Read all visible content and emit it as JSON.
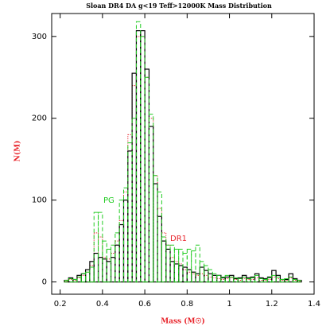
{
  "chart_data": {
    "type": "histogram",
    "title": "Sloan DR4 DA g<19 Teff>12000K Mass Distribution",
    "x_label": "Mass (M☉)",
    "y_label": "N(M)",
    "bins": [
      0.16,
      0.18,
      0.2,
      0.22,
      0.24,
      0.26,
      0.28,
      0.3,
      0.32,
      0.34,
      0.36,
      0.38,
      0.4,
      0.42,
      0.44,
      0.46,
      0.48,
      0.5,
      0.52,
      0.54,
      0.56,
      0.58,
      0.6,
      0.62,
      0.64,
      0.66,
      0.68,
      0.7,
      0.72,
      0.74,
      0.76,
      0.78,
      0.8,
      0.82,
      0.84,
      0.86,
      0.88,
      0.9,
      0.92,
      0.94,
      0.96,
      0.98,
      1.0,
      1.02,
      1.04,
      1.06,
      1.08,
      1.1,
      1.12,
      1.14,
      1.16,
      1.18,
      1.2,
      1.22,
      1.24,
      1.26,
      1.28,
      1.3,
      1.32,
      1.34,
      1.36,
      1.38,
      1.4
    ],
    "series": [
      {
        "name": "DR1",
        "color": "#e8232a",
        "dash": "dotted",
        "values": [
          0,
          0,
          0,
          1,
          3,
          2,
          5,
          8,
          12,
          20,
          60,
          55,
          30,
          28,
          35,
          50,
          75,
          110,
          180,
          240,
          300,
          300,
          250,
          200,
          130,
          90,
          60,
          45,
          30,
          25,
          22,
          15,
          12,
          10,
          8,
          10,
          8,
          6,
          5,
          4,
          3,
          4,
          5,
          3,
          2,
          4,
          3,
          3,
          5,
          2,
          2,
          3,
          6,
          4,
          2,
          2,
          5,
          2,
          1,
          0,
          0,
          0
        ]
      },
      {
        "color": "#000000",
        "dash": "solid",
        "values": [
          0,
          0,
          0,
          2,
          5,
          3,
          8,
          10,
          15,
          25,
          35,
          30,
          28,
          25,
          30,
          45,
          70,
          100,
          160,
          255,
          307,
          307,
          260,
          190,
          120,
          80,
          50,
          40,
          25,
          22,
          20,
          18,
          15,
          12,
          10,
          18,
          14,
          10,
          8,
          8,
          5,
          6,
          8,
          4,
          5,
          8,
          5,
          6,
          10,
          5,
          4,
          6,
          14,
          8,
          3,
          3,
          10,
          4,
          2,
          0,
          0,
          0
        ]
      },
      {
        "name": "PG",
        "color": "#22cc22",
        "dash": "dashed",
        "values": [
          0,
          0,
          0,
          2,
          4,
          3,
          6,
          10,
          12,
          18,
          85,
          85,
          50,
          40,
          45,
          60,
          100,
          115,
          170,
          200,
          318,
          300,
          250,
          205,
          130,
          110,
          55,
          45,
          45,
          40,
          40,
          35,
          40,
          38,
          45,
          25,
          20,
          15,
          10,
          8,
          6,
          8,
          6,
          5,
          4,
          6,
          4,
          5,
          8,
          4,
          3,
          5,
          8,
          6,
          3,
          4,
          6,
          3,
          2,
          0,
          0,
          0
        ]
      }
    ],
    "xlim": [
      0.16,
      1.4
    ],
    "ylim": [
      -15,
      328
    ],
    "xticks": [
      0.2,
      0.4,
      0.6,
      0.8,
      1,
      1.2,
      1.4
    ],
    "yticks": [
      0,
      100,
      200,
      300
    ]
  }
}
